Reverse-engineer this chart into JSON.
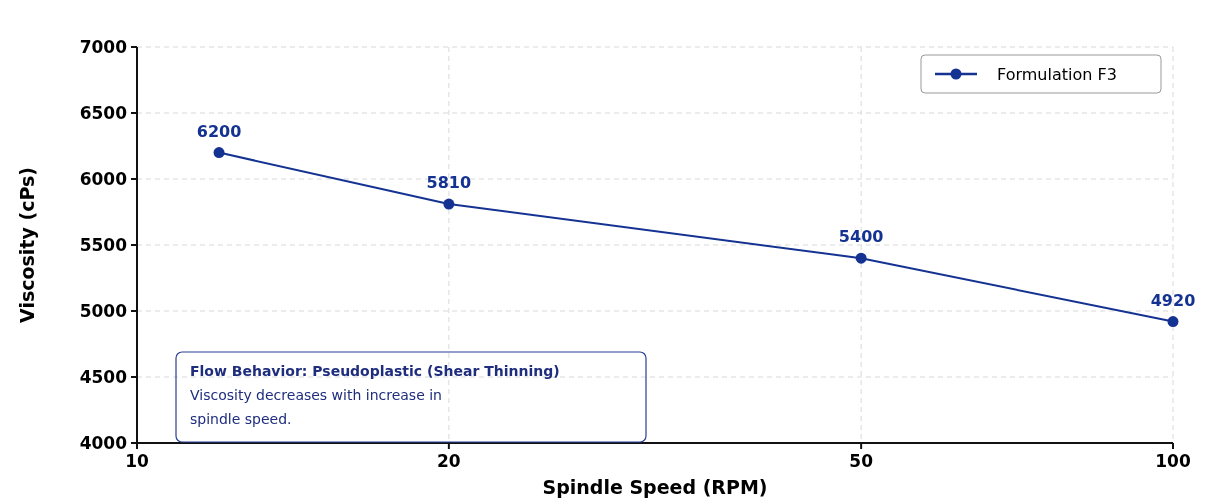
{
  "chart_data": {
    "type": "line",
    "xlabel": "Spindle Speed (RPM)",
    "ylabel": "Viscosity (cPs)",
    "x": [
      12,
      20,
      50,
      100
    ],
    "series": [
      {
        "name": "Formulation F3",
        "color": "#143291",
        "values": [
          6200,
          5810,
          5400,
          4920
        ]
      }
    ],
    "log": "x",
    "xlim": [
      10,
      100
    ],
    "xticks": [
      10,
      20,
      50,
      100
    ],
    "ylim": [
      4000,
      7000
    ],
    "yticks": [
      4000,
      4500,
      5000,
      5500,
      6000,
      6500,
      7000
    ],
    "grid": true,
    "legend": "top right",
    "marker": "circle",
    "line_style": "solid",
    "data_labels": true,
    "annotations": [
      "Flow Behavior: Pseudoplastic (Shear Thinning)",
      "Viscosity decreases with increase in spindle speed."
    ]
  }
}
